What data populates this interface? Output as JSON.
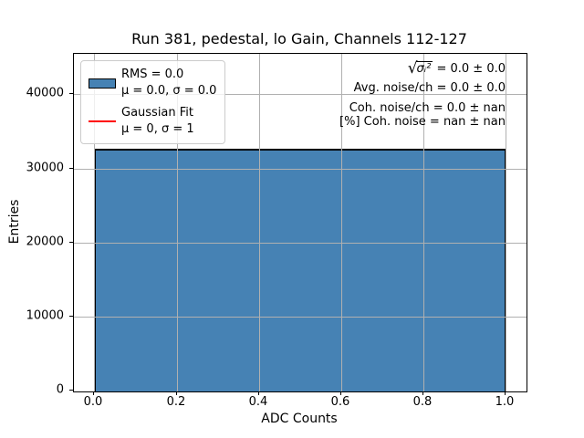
{
  "figure": {
    "title": "Run 381, pedestal, lo Gain, Channels 112-127",
    "xlabel": "ADC Counts",
    "ylabel": "Entries"
  },
  "axes": {
    "xticks": [
      "0.0",
      "0.2",
      "0.4",
      "0.6",
      "0.8",
      "1.0"
    ],
    "yticks": [
      "40000",
      "30000",
      "20000",
      "10000",
      "0"
    ]
  },
  "legend": {
    "entries": [
      {
        "symbol": "histogram-patch",
        "line1": "RMS = 0.0",
        "line2": "μ = 0.0, σ = 0.0"
      },
      {
        "symbol": "gaussian-fit-line",
        "line1": "Gaussian Fit",
        "line2": "μ = 0, σ = 1"
      }
    ]
  },
  "annotations": {
    "sqrt_sigma": {
      "radical": "√",
      "radicand": "σᵢ²",
      "rest": " = 0.0 ± 0.0"
    },
    "avg_noise": "Avg. noise/ch = 0.0 ± 0.0",
    "coh_noise": "Coh. noise/ch = 0.0 ± nan",
    "coh_noise_pct": "[%] Coh. noise = nan ± nan"
  },
  "colors": {
    "bar_fill": "#4682B4",
    "bar_edge": "#000000",
    "fit_line": "#FF0000",
    "grid": "#B0B0B0",
    "legend_border": "#CCCCCC"
  },
  "chart_data": {
    "type": "bar",
    "title": "Run 381, pedestal, lo Gain, Channels 112-127",
    "xlabel": "ADC Counts",
    "ylabel": "Entries",
    "bin_edges": [
      0.0,
      1.0
    ],
    "values": [
      32768
    ],
    "xlim": [
      -0.05,
      1.05
    ],
    "ylim": [
      0,
      45500
    ],
    "xticks": [
      0.0,
      0.2,
      0.4,
      0.6,
      0.8,
      1.0
    ],
    "yticks": [
      0,
      10000,
      20000,
      30000,
      40000
    ],
    "grid": true,
    "legend_position": "upper left",
    "series": [
      {
        "name": "RMS = 0.0; μ = 0.0, σ = 0.0",
        "type": "histogram",
        "color": "#4682B4",
        "value": 32768
      },
      {
        "name": "Gaussian Fit; μ = 0, σ = 1",
        "type": "line",
        "color": "#FF0000"
      }
    ]
  }
}
